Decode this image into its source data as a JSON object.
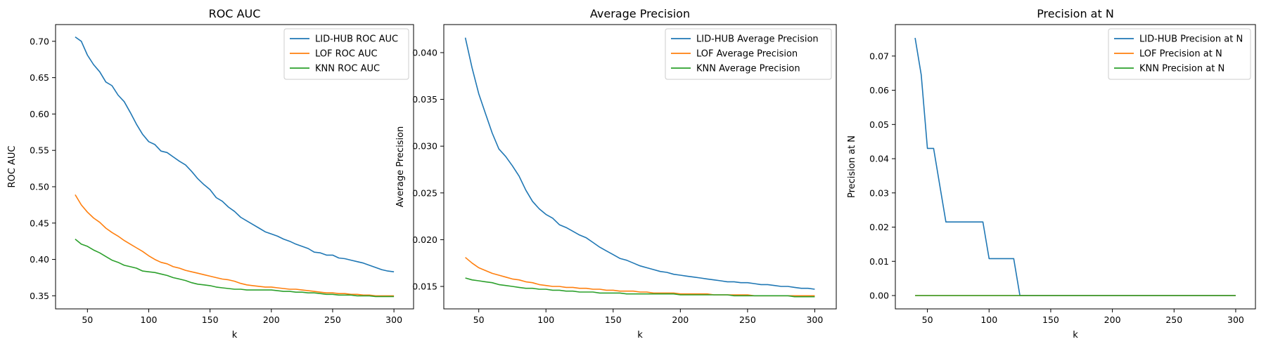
{
  "chart_data": [
    {
      "type": "line",
      "title": "ROC AUC",
      "xlabel": "k",
      "ylabel": "ROC AUC",
      "xlim": [
        24,
        316
      ],
      "ylim": [
        0.332,
        0.723
      ],
      "xticks": [
        50,
        100,
        150,
        200,
        250,
        300
      ],
      "yticks": [
        0.35,
        0.4,
        0.45,
        0.5,
        0.55,
        0.6,
        0.65,
        0.7
      ],
      "ytick_labels": [
        "0.35",
        "0.40",
        "0.45",
        "0.50",
        "0.55",
        "0.60",
        "0.65",
        "0.70"
      ],
      "legend_position": "top-right",
      "grid": false,
      "x": [
        40,
        45,
        50,
        55,
        60,
        65,
        70,
        75,
        80,
        85,
        90,
        95,
        100,
        105,
        110,
        115,
        120,
        125,
        130,
        135,
        140,
        145,
        150,
        155,
        160,
        165,
        170,
        175,
        180,
        185,
        190,
        195,
        200,
        205,
        210,
        215,
        220,
        225,
        230,
        235,
        240,
        245,
        250,
        255,
        260,
        265,
        270,
        275,
        280,
        285,
        290,
        295,
        300
      ],
      "series": [
        {
          "name": "LID-HUB ROC AUC",
          "color": "#1f77b4",
          "values": [
            0.706,
            0.7,
            0.681,
            0.668,
            0.658,
            0.644,
            0.639,
            0.626,
            0.617,
            0.602,
            0.586,
            0.572,
            0.562,
            0.558,
            0.549,
            0.547,
            0.541,
            0.535,
            0.53,
            0.521,
            0.511,
            0.503,
            0.496,
            0.485,
            0.48,
            0.472,
            0.466,
            0.458,
            0.453,
            0.448,
            0.443,
            0.438,
            0.435,
            0.432,
            0.428,
            0.425,
            0.421,
            0.418,
            0.415,
            0.41,
            0.409,
            0.406,
            0.406,
            0.402,
            0.401,
            0.399,
            0.397,
            0.395,
            0.392,
            0.389,
            0.386,
            0.384,
            0.383
          ]
        },
        {
          "name": "LOF ROC AUC",
          "color": "#ff7f0e",
          "values": [
            0.489,
            0.475,
            0.465,
            0.457,
            0.451,
            0.443,
            0.437,
            0.432,
            0.426,
            0.421,
            0.416,
            0.411,
            0.405,
            0.4,
            0.396,
            0.394,
            0.39,
            0.388,
            0.385,
            0.383,
            0.381,
            0.379,
            0.377,
            0.375,
            0.373,
            0.372,
            0.37,
            0.367,
            0.365,
            0.364,
            0.363,
            0.362,
            0.362,
            0.361,
            0.36,
            0.359,
            0.359,
            0.358,
            0.357,
            0.356,
            0.355,
            0.354,
            0.354,
            0.353,
            0.353,
            0.352,
            0.352,
            0.351,
            0.351,
            0.35,
            0.35,
            0.35,
            0.35
          ]
        },
        {
          "name": "KNN ROC AUC",
          "color": "#2ca02c",
          "values": [
            0.428,
            0.421,
            0.418,
            0.413,
            0.409,
            0.404,
            0.399,
            0.396,
            0.392,
            0.39,
            0.388,
            0.384,
            0.383,
            0.382,
            0.38,
            0.378,
            0.375,
            0.373,
            0.371,
            0.368,
            0.366,
            0.365,
            0.364,
            0.362,
            0.361,
            0.36,
            0.359,
            0.359,
            0.358,
            0.358,
            0.358,
            0.358,
            0.358,
            0.357,
            0.356,
            0.356,
            0.355,
            0.355,
            0.354,
            0.354,
            0.353,
            0.352,
            0.352,
            0.351,
            0.351,
            0.351,
            0.35,
            0.35,
            0.35,
            0.349,
            0.349,
            0.349,
            0.349
          ]
        }
      ]
    },
    {
      "type": "line",
      "title": "Average Precision",
      "xlabel": "k",
      "ylabel": "Average Precision",
      "xlim": [
        24,
        316
      ],
      "ylim": [
        0.0126,
        0.043
      ],
      "xticks": [
        50,
        100,
        150,
        200,
        250,
        300
      ],
      "yticks": [
        0.015,
        0.02,
        0.025,
        0.03,
        0.035,
        0.04
      ],
      "ytick_labels": [
        "0.015",
        "0.020",
        "0.025",
        "0.030",
        "0.035",
        "0.040"
      ],
      "legend_position": "top-right",
      "grid": false,
      "x": [
        40,
        45,
        50,
        55,
        60,
        65,
        70,
        75,
        80,
        85,
        90,
        95,
        100,
        105,
        110,
        115,
        120,
        125,
        130,
        135,
        140,
        145,
        150,
        155,
        160,
        165,
        170,
        175,
        180,
        185,
        190,
        195,
        200,
        205,
        210,
        215,
        220,
        225,
        230,
        235,
        240,
        245,
        250,
        255,
        260,
        265,
        270,
        275,
        280,
        285,
        290,
        295,
        300
      ],
      "series": [
        {
          "name": "LID-HUB Average Precision",
          "color": "#1f77b4",
          "values": [
            0.0416,
            0.0384,
            0.0356,
            0.0335,
            0.0314,
            0.0297,
            0.0289,
            0.0279,
            0.0268,
            0.0253,
            0.0241,
            0.0233,
            0.0227,
            0.0223,
            0.0216,
            0.0213,
            0.0209,
            0.0205,
            0.0202,
            0.0197,
            0.0192,
            0.0188,
            0.0184,
            0.018,
            0.0178,
            0.0175,
            0.0172,
            0.017,
            0.0168,
            0.0166,
            0.0165,
            0.0163,
            0.0162,
            0.0161,
            0.016,
            0.0159,
            0.0158,
            0.0157,
            0.0156,
            0.0155,
            0.0155,
            0.0154,
            0.0154,
            0.0153,
            0.0152,
            0.0152,
            0.0151,
            0.015,
            0.015,
            0.0149,
            0.0148,
            0.0148,
            0.0147
          ]
        },
        {
          "name": "LOF Average Precision",
          "color": "#ff7f0e",
          "values": [
            0.0181,
            0.0175,
            0.017,
            0.0167,
            0.0164,
            0.0162,
            0.016,
            0.0158,
            0.0157,
            0.0155,
            0.0154,
            0.0152,
            0.0151,
            0.015,
            0.015,
            0.0149,
            0.0149,
            0.0148,
            0.0148,
            0.0147,
            0.0147,
            0.0146,
            0.0146,
            0.0145,
            0.0145,
            0.0145,
            0.0144,
            0.0144,
            0.0143,
            0.0143,
            0.0143,
            0.0143,
            0.0142,
            0.0142,
            0.0142,
            0.0142,
            0.0142,
            0.0141,
            0.0141,
            0.0141,
            0.0141,
            0.0141,
            0.0141,
            0.014,
            0.014,
            0.014,
            0.014,
            0.014,
            0.014,
            0.014,
            0.014,
            0.014,
            0.014
          ]
        },
        {
          "name": "KNN Average Precision",
          "color": "#2ca02c",
          "values": [
            0.0159,
            0.0157,
            0.0156,
            0.0155,
            0.0154,
            0.0152,
            0.0151,
            0.015,
            0.0149,
            0.0148,
            0.0148,
            0.0147,
            0.0147,
            0.0146,
            0.0146,
            0.0145,
            0.0145,
            0.0144,
            0.0144,
            0.0144,
            0.0143,
            0.0143,
            0.0143,
            0.0143,
            0.0142,
            0.0142,
            0.0142,
            0.0142,
            0.0142,
            0.0142,
            0.0142,
            0.0142,
            0.0141,
            0.0141,
            0.0141,
            0.0141,
            0.0141,
            0.0141,
            0.0141,
            0.0141,
            0.014,
            0.014,
            0.014,
            0.014,
            0.014,
            0.014,
            0.014,
            0.014,
            0.014,
            0.0139,
            0.0139,
            0.0139,
            0.0139
          ]
        }
      ]
    },
    {
      "type": "line",
      "title": "Precision at N",
      "xlabel": "k",
      "ylabel": "Precision at N",
      "xlim": [
        24,
        316
      ],
      "ylim": [
        -0.0039,
        0.0792
      ],
      "xticks": [
        50,
        100,
        150,
        200,
        250,
        300
      ],
      "yticks": [
        0.0,
        0.01,
        0.02,
        0.03,
        0.04,
        0.05,
        0.06,
        0.07
      ],
      "ytick_labels": [
        "0.00",
        "0.01",
        "0.02",
        "0.03",
        "0.04",
        "0.05",
        "0.06",
        "0.07"
      ],
      "legend_position": "top-right",
      "grid": false,
      "x": [
        40,
        45,
        50,
        55,
        60,
        65,
        70,
        75,
        80,
        85,
        90,
        95,
        100,
        105,
        110,
        115,
        120,
        125,
        130,
        135,
        140,
        145,
        150,
        155,
        160,
        165,
        170,
        175,
        180,
        185,
        190,
        195,
        200,
        205,
        210,
        215,
        220,
        225,
        230,
        235,
        240,
        245,
        250,
        255,
        260,
        265,
        270,
        275,
        280,
        285,
        290,
        295,
        300
      ],
      "series": [
        {
          "name": "LID-HUB Precision at N",
          "color": "#1f77b4",
          "values": [
            0.0753,
            0.0645,
            0.043,
            0.043,
            0.0323,
            0.0215,
            0.0215,
            0.0215,
            0.0215,
            0.0215,
            0.0215,
            0.0215,
            0.0108,
            0.0108,
            0.0108,
            0.0108,
            0.0108,
            0,
            0,
            0,
            0,
            0,
            0,
            0,
            0,
            0,
            0,
            0,
            0,
            0,
            0,
            0,
            0,
            0,
            0,
            0,
            0,
            0,
            0,
            0,
            0,
            0,
            0,
            0,
            0,
            0,
            0,
            0,
            0,
            0,
            0,
            0,
            0
          ]
        },
        {
          "name": "LOF Precision at N",
          "color": "#ff7f0e",
          "values": [
            0,
            0,
            0,
            0,
            0,
            0,
            0,
            0,
            0,
            0,
            0,
            0,
            0,
            0,
            0,
            0,
            0,
            0,
            0,
            0,
            0,
            0,
            0,
            0,
            0,
            0,
            0,
            0,
            0,
            0,
            0,
            0,
            0,
            0,
            0,
            0,
            0,
            0,
            0,
            0,
            0,
            0,
            0,
            0,
            0,
            0,
            0,
            0,
            0,
            0,
            0,
            0,
            0
          ]
        },
        {
          "name": "KNN Precision at N",
          "color": "#2ca02c",
          "values": [
            0,
            0,
            0,
            0,
            0,
            0,
            0,
            0,
            0,
            0,
            0,
            0,
            0,
            0,
            0,
            0,
            0,
            0,
            0,
            0,
            0,
            0,
            0,
            0,
            0,
            0,
            0,
            0,
            0,
            0,
            0,
            0,
            0,
            0,
            0,
            0,
            0,
            0,
            0,
            0,
            0,
            0,
            0,
            0,
            0,
            0,
            0,
            0,
            0,
            0,
            0,
            0,
            0
          ]
        }
      ]
    }
  ]
}
